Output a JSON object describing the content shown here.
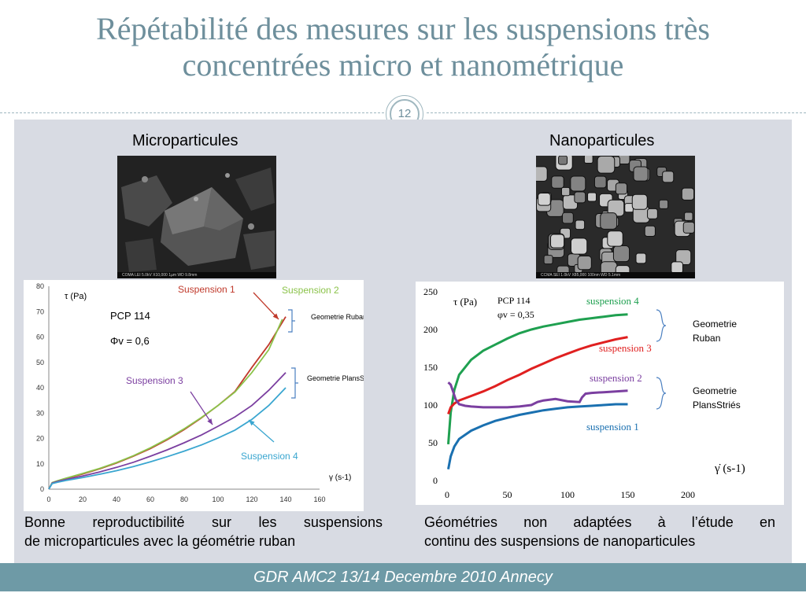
{
  "slide": {
    "title_line1": "Répétabilité des mesures sur les suspensions très",
    "title_line2": "concentrées micro et nanométrique",
    "page_number": "12",
    "footer": "GDR AMC2 13/14 Decembre 2010 Annecy"
  },
  "micro": {
    "heading": "Microparticules",
    "photo_caption": "COMA  LEI  5.0kV  X10,000  1µm  WD 9.8mm",
    "caption_line1": "Bonne reproductibilité sur les suspensions",
    "caption_line2": "de microparticules avec la géométrie ruban"
  },
  "nano": {
    "heading": "Nanoparticules",
    "photo_caption": "CCMA  SEI  1.0kV  X85,000  100nm  WD 5.1mm",
    "caption_line1": "Géométries non adaptées à l’étude en",
    "caption_line2": "continu des suspensions de nanoparticules"
  },
  "chart_data": [
    {
      "type": "line",
      "ylabel": "τ (Pa)",
      "xlabel": "γ (s-1)",
      "xlim": [
        0,
        160
      ],
      "ylim": [
        0,
        80
      ],
      "xticks": [
        "0",
        "20",
        "40",
        "60",
        "80",
        "100",
        "120",
        "140",
        "160"
      ],
      "yticks": [
        "0",
        "10",
        "20",
        "30",
        "40",
        "50",
        "60",
        "70",
        "80"
      ],
      "grid": false,
      "annotations": {
        "material": "PCP 114",
        "fraction": "Φv = 0,6",
        "group_ruban": "Geometrie Ruban",
        "group_plans": "Geometrie PlansStriés"
      },
      "series": [
        {
          "name": "Suspension 1",
          "color": "#c0392b",
          "x": [
            0,
            2,
            5,
            10,
            20,
            30,
            40,
            50,
            60,
            70,
            80,
            90,
            100,
            110,
            120,
            130,
            140
          ],
          "y": [
            0,
            2.5,
            3.2,
            4.2,
            6,
            8,
            10.3,
            13,
            16,
            19.5,
            23.5,
            28,
            33,
            38.5,
            48,
            57,
            68
          ]
        },
        {
          "name": "Suspension 2",
          "color": "#8bc34a",
          "x": [
            0,
            2,
            5,
            10,
            20,
            30,
            40,
            50,
            60,
            70,
            80,
            90,
            100,
            110,
            120,
            130,
            138
          ],
          "y": [
            0,
            2.6,
            3.3,
            4.3,
            6.2,
            8.2,
            10.5,
            13.2,
            16.3,
            19.8,
            23.8,
            28.2,
            33,
            38.3,
            46,
            55,
            67
          ]
        },
        {
          "name": "Suspension 3",
          "color": "#7b3fa0",
          "x": [
            0,
            2,
            5,
            10,
            20,
            30,
            40,
            50,
            60,
            70,
            80,
            90,
            100,
            110,
            120,
            130,
            140
          ],
          "y": [
            0,
            2.4,
            3,
            3.8,
            5.2,
            6.8,
            8.6,
            10.6,
            13,
            15.5,
            18.3,
            21.3,
            24.8,
            28.5,
            33,
            39,
            46
          ]
        },
        {
          "name": "Suspension 4",
          "color": "#3aa6d0",
          "x": [
            0,
            2,
            5,
            10,
            20,
            30,
            40,
            50,
            60,
            70,
            80,
            90,
            100,
            110,
            120,
            130,
            140
          ],
          "y": [
            0,
            2.2,
            2.7,
            3.4,
            4.6,
            5.9,
            7.3,
            8.9,
            10.8,
            12.8,
            15,
            17.4,
            20.2,
            23.3,
            27.5,
            33,
            40
          ]
        }
      ]
    },
    {
      "type": "line",
      "ylabel": "τ (Pa)",
      "xlabel": "γ̇ (s-1)",
      "xlim": [
        0,
        200
      ],
      "ylim": [
        0,
        250
      ],
      "xticks": [
        "0",
        "50",
        "100",
        "150",
        "200"
      ],
      "yticks": [
        "0",
        "50",
        "100",
        "150",
        "200",
        "250"
      ],
      "grid": false,
      "annotations": {
        "material": "PCP 114",
        "fraction": "φv = 0,35",
        "group_ruban": "Geometrie Ruban",
        "group_plans": "Geometrie PlansStriés"
      },
      "series": [
        {
          "name": "suspension 4",
          "color": "#1fa050",
          "x": [
            1,
            3,
            6,
            10,
            20,
            30,
            40,
            50,
            60,
            70,
            80,
            90,
            100,
            110,
            120,
            130,
            140,
            150
          ],
          "y": [
            48,
            90,
            120,
            140,
            160,
            172,
            180,
            188,
            195,
            200,
            204,
            207,
            210,
            213,
            215,
            217,
            219,
            220
          ]
        },
        {
          "name": "suspension 3",
          "color": "#e02020",
          "x": [
            1,
            3,
            6,
            10,
            20,
            30,
            40,
            50,
            60,
            70,
            80,
            90,
            100,
            110,
            120,
            130,
            140,
            150
          ],
          "y": [
            88,
            97,
            102,
            106,
            112,
            118,
            125,
            133,
            140,
            148,
            155,
            162,
            168,
            174,
            179,
            183,
            187,
            190
          ]
        },
        {
          "name": "suspension 2",
          "color": "#7b3fa0",
          "x": [
            1,
            3,
            5,
            7,
            10,
            15,
            20,
            30,
            40,
            50,
            60,
            70,
            75,
            80,
            90,
            100,
            110,
            112,
            115,
            120,
            130,
            140,
            150
          ],
          "y": [
            130,
            127,
            118,
            108,
            101,
            99,
            98,
            97,
            97,
            97,
            98,
            100,
            104,
            106,
            108,
            105,
            104,
            110,
            115,
            116,
            117,
            118,
            119
          ]
        },
        {
          "name": "suspension 1",
          "color": "#1a70b0",
          "x": [
            1,
            3,
            6,
            10,
            20,
            30,
            40,
            50,
            60,
            70,
            80,
            90,
            100,
            110,
            120,
            130,
            140,
            150
          ],
          "y": [
            15,
            32,
            45,
            55,
            66,
            73,
            79,
            83,
            87,
            90,
            93,
            95,
            97,
            98,
            99,
            100,
            101,
            101
          ]
        }
      ]
    }
  ]
}
